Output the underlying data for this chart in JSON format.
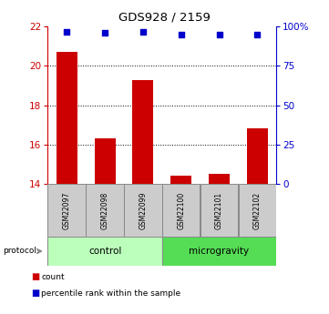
{
  "title": "GDS928 / 2159",
  "samples": [
    "GSM22097",
    "GSM22098",
    "GSM22099",
    "GSM22100",
    "GSM22101",
    "GSM22102"
  ],
  "bar_values": [
    20.7,
    16.3,
    19.3,
    14.4,
    14.5,
    16.8
  ],
  "percentile_values": [
    97,
    96,
    97,
    95,
    95,
    95
  ],
  "bar_color": "#cc0000",
  "dot_color": "#0000cc",
  "ylim_left": [
    14,
    22
  ],
  "ylim_right": [
    0,
    100
  ],
  "yticks_left": [
    14,
    16,
    18,
    20,
    22
  ],
  "yticks_right": [
    0,
    25,
    50,
    75,
    100
  ],
  "yticklabels_right": [
    "0",
    "25",
    "50",
    "75",
    "100%"
  ],
  "groups": [
    {
      "label": "control",
      "indices": [
        0,
        1,
        2
      ],
      "color": "#bbffbb"
    },
    {
      "label": "microgravity",
      "indices": [
        3,
        4,
        5
      ],
      "color": "#55dd55"
    }
  ],
  "protocol_label": "protocol",
  "legend_items": [
    {
      "color": "#cc0000",
      "label": "count"
    },
    {
      "color": "#0000cc",
      "label": "percentile rank within the sample"
    }
  ],
  "bar_width": 0.55,
  "background_color": "#ffffff",
  "tick_color_left": "#cc0000",
  "tick_color_right": "#0000cc",
  "gridline_y": [
    16,
    18,
    20
  ],
  "sample_box_color": "#cccccc",
  "sample_box_edge": "#888888"
}
